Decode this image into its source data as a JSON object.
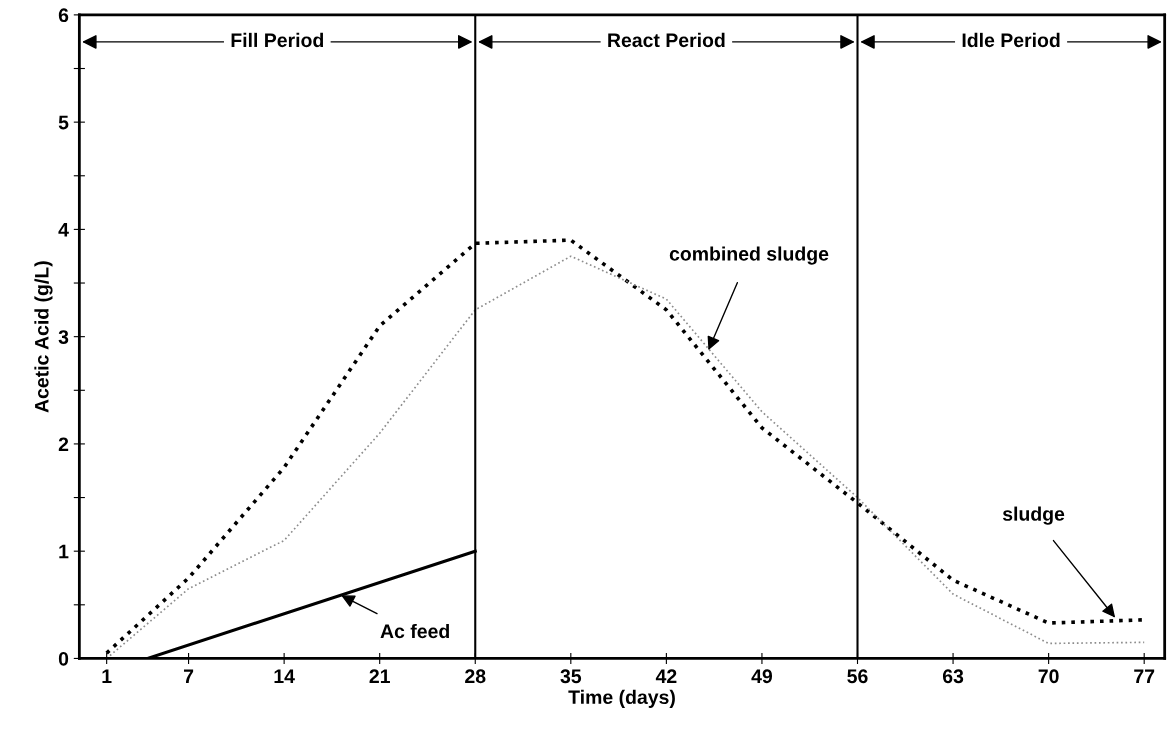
{
  "chart_data": {
    "type": "line",
    "xlabel": "Time (days)",
    "ylabel": "Acetic Acid (g/L)",
    "xlim": [
      -1,
      78.5
    ],
    "xticks": [
      1,
      7,
      14,
      21,
      28,
      35,
      42,
      49,
      56,
      63,
      70,
      77
    ],
    "ylim": [
      0,
      6
    ],
    "yticks": [
      0,
      {
        "value": 0.5,
        "label": null
      },
      1,
      {
        "value": 1.5,
        "label": null
      },
      2,
      {
        "value": 2.5,
        "label": null
      },
      3,
      {
        "value": 3.5,
        "label": null
      },
      4,
      {
        "value": 4.5,
        "label": null
      },
      5,
      {
        "value": 5.5,
        "label": null
      },
      6
    ],
    "grid": false,
    "legend": false,
    "marker": "none",
    "series": [
      {
        "color": "#000000",
        "line_style": "dotted",
        "x": [
          1,
          7,
          14,
          21,
          28,
          35,
          42,
          49,
          56,
          63,
          70,
          77
        ],
        "values": [
          0.05,
          0.75,
          1.78,
          3.1,
          3.87,
          3.9,
          3.25,
          2.15,
          1.45,
          0.73,
          0.33,
          0.36
        ]
      },
      {
        "color": "#8c8c8c",
        "line_style": "dotted",
        "x": [
          1,
          7,
          14,
          21,
          28,
          35,
          42,
          49,
          56,
          63,
          70,
          77
        ],
        "values": [
          0,
          0.65,
          1.1,
          2.1,
          3.25,
          3.75,
          3.35,
          2.3,
          1.5,
          0.6,
          0.14,
          0.15
        ]
      },
      {
        "color": "#000000",
        "line_style": "solid",
        "x": [
          4,
          28
        ],
        "values": [
          0,
          1.0
        ]
      }
    ],
    "ref_lines": [
      {
        "axis": "x",
        "value": 28,
        "color": "#000000"
      },
      {
        "axis": "x",
        "value": 56,
        "color": "#000000"
      }
    ],
    "annotations": [
      "Fill Period",
      "React Period",
      "Idle Period",
      {
        "text": "combined sludge",
        "x": 45,
        "y": 2.85
      },
      {
        "text": "sludge",
        "x": 75,
        "y": 0.36
      },
      {
        "text": "Ac feed",
        "x": 18,
        "y": 0.6
      }
    ]
  }
}
